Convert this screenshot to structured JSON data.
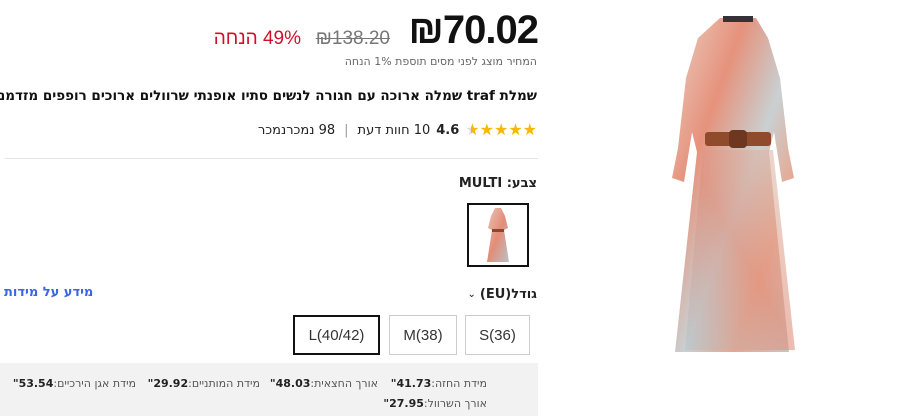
{
  "price": {
    "current": "₪70.02",
    "original": "₪138.20",
    "discount": "49% הנחה",
    "tax_note": "המחיר מוצג לפני מסים תוספת 1% הנחה"
  },
  "product": {
    "title": "שמלת traf שמלה ארוכה עם חגורה לנשים סתיו אופנתי שרוולים ארוכים רופפים מזדמנים"
  },
  "rating": {
    "value": 4.6,
    "value_label": "4.6",
    "reviews": "10 חוות דעת",
    "sold": "98 נמכרנמכר",
    "star_color": "#f6b800"
  },
  "color": {
    "label": "צבע:",
    "value": "MULTI"
  },
  "size": {
    "label": "גודל(EU)",
    "info_link": "מידע על מידות",
    "options": [
      "S(36)",
      "M(38)",
      "L(40/42)"
    ],
    "selected": "L(40/42)"
  },
  "measurements": [
    {
      "label": "מידת החזה:",
      "value": "41.73\""
    },
    {
      "label": "אורך החצאית:",
      "value": "48.03\""
    },
    {
      "label": "מידת המותניים:",
      "value": "29.92\""
    },
    {
      "label": "מידת אגן הירכיים:",
      "value": "53.54\""
    },
    {
      "label": "אורך השרוול:",
      "value": "27.95\""
    }
  ],
  "colors": {
    "discount": "#d0102a",
    "link": "#3a66e0"
  }
}
